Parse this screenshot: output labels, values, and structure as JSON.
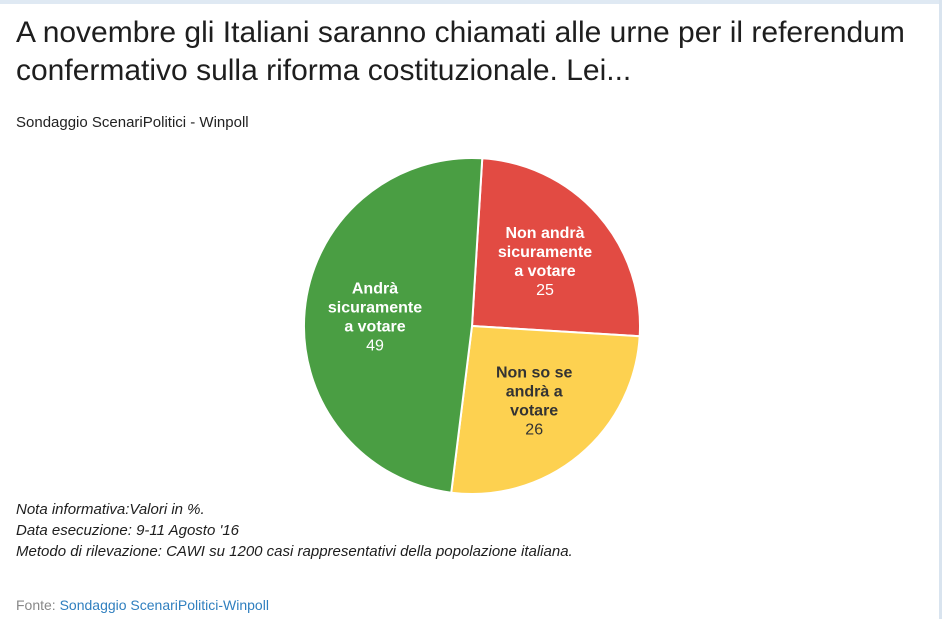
{
  "title": "A novembre gli Italiani saranno chiamati alle urne per il referendum confermativo sulla riforma costituzionale. Lei...",
  "subtitle": "Sondaggio ScenariPolitici - Winpoll",
  "chart_data": {
    "type": "pie",
    "title": "A novembre gli Italiani saranno chiamati alle urne per il referendum confermativo sulla riforma costituzionale. Lei...",
    "subtitle": "Sondaggio ScenariPolitici - Winpoll",
    "slices": [
      {
        "label_lines": [
          "Non andrà",
          "sicuramente",
          "a votare"
        ],
        "value": 25,
        "color": "#e24b43",
        "label_color": "#ffffff"
      },
      {
        "label_lines": [
          "Non so se",
          "andrà a",
          "votare"
        ],
        "value": 26,
        "color": "#fdd150",
        "label_color": "#333333"
      },
      {
        "label_lines": [
          "Andrà",
          "sicuramente",
          "a votare"
        ],
        "value": 49,
        "color": "#4a9e43",
        "label_color": "#ffffff"
      }
    ],
    "units": "%"
  },
  "notes": [
    "Nota informativa:Valori in %.",
    "Data esecuzione: 9-11 Agosto '16",
    "Metodo di rilevazione: CAWI su 1200 casi rappresentativi della popolazione italiana."
  ],
  "source": {
    "prefix": "Fonte: ",
    "link_text": "Sondaggio ScenariPolitici-Winpoll"
  }
}
